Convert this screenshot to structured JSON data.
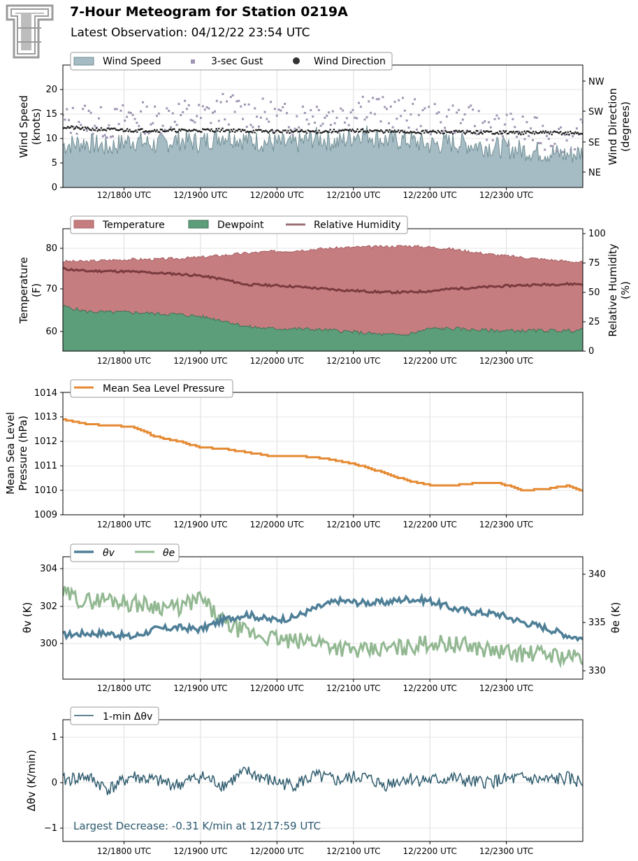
{
  "header": {
    "title": "7-Hour Meteogram for Station 0219A",
    "subtitle": "Latest Observation: 04/12/22 23:54 UTC",
    "logo": "texas-tech-double-t-logo"
  },
  "colors": {
    "wind": "#a6bcc4",
    "wind_edge": "#6f8d93",
    "gust": "#9f94b2",
    "direction": "#222222",
    "temperature": "#c57d7f",
    "dewpoint": "#5d9e7a",
    "rh": "#7a3b3f",
    "pressure": "#e58a33",
    "theta_v": "#4e7f97",
    "theta_e": "#92b892",
    "dtheta": "#2f5c6e",
    "grid": "#dddddd"
  },
  "x_tick_labels": [
    "12/1800 UTC",
    "12/1900 UTC",
    "12/2000 UTC",
    "12/2100 UTC",
    "12/2200 UTC",
    "12/2300 UTC"
  ],
  "panels": {
    "wind": {
      "ylabel_line1": "Wind Speed",
      "ylabel_line2": "(knots)",
      "y2label_line1": "Wind Direction",
      "y2label_line2": "(degrees)",
      "yticks": [
        "0",
        "5",
        "10",
        "15",
        "20"
      ],
      "y2ticks": [
        "NE",
        "SE",
        "SW",
        "NW"
      ],
      "legend": [
        "Wind Speed",
        "3-sec Gust",
        "Wind Direction"
      ]
    },
    "temp": {
      "ylabel_line1": "Temperature",
      "ylabel_line2": "(F)",
      "y2label_line1": "Relative Humidity",
      "y2label_line2": "(%)",
      "yticks": [
        "60",
        "70",
        "80"
      ],
      "y2ticks": [
        "0",
        "25",
        "50",
        "75",
        "100"
      ],
      "legend": [
        "Temperature",
        "Dewpoint",
        "Relative Humidity"
      ]
    },
    "pressure": {
      "ylabel_line1": "Mean Sea Level",
      "ylabel_line2": "Pressure (hPa)",
      "yticks": [
        "1009",
        "1010",
        "1011",
        "1012",
        "1013",
        "1014"
      ],
      "legend": [
        "Mean Sea Level Pressure"
      ]
    },
    "theta": {
      "ylabel": "θv (K)",
      "y2label": "θe (K)",
      "yticks": [
        "300",
        "302",
        "304"
      ],
      "y2ticks": [
        "330",
        "335",
        "340"
      ],
      "legend": [
        "θv",
        "θe"
      ]
    },
    "dtheta": {
      "ylabel": "Δθv (K/min)",
      "yticks": [
        "−1",
        "0",
        "1"
      ],
      "legend": [
        "1-min Δθv"
      ],
      "annotation": "Largest Decrease: -0.31 K/min at 12/17:59 UTC"
    }
  },
  "chart_data": [
    {
      "type": "area",
      "name": "wind",
      "x_hours": [
        17.2,
        24.0
      ],
      "ylim": [
        0,
        24.5
      ],
      "y2lim": [
        0,
        360
      ],
      "series": [
        {
          "name": "Wind Speed",
          "kind": "area",
          "x": [
            17.2,
            17.5,
            17.8,
            18.1,
            18.4,
            18.7,
            19.0,
            19.3,
            19.6,
            19.9,
            20.2,
            20.5,
            20.8,
            21.1,
            21.4,
            21.7,
            22.0,
            22.3,
            22.6,
            22.9,
            23.2,
            23.5,
            23.8,
            24.0
          ],
          "values": [
            8.5,
            9.0,
            8.0,
            9.5,
            8.5,
            9.5,
            9.0,
            10.5,
            9.5,
            9.0,
            8.5,
            10.0,
            9.0,
            11.0,
            9.5,
            9.5,
            8.5,
            9.0,
            8.5,
            8.0,
            7.5,
            7.0,
            6.5,
            7.0
          ]
        },
        {
          "name": "3-sec Gust",
          "kind": "scatter",
          "x": [
            17.2,
            17.5,
            17.8,
            18.1,
            18.4,
            18.7,
            19.0,
            19.3,
            19.6,
            19.9,
            20.2,
            20.5,
            20.8,
            21.1,
            21.4,
            21.7,
            22.0,
            22.3,
            22.6,
            22.9,
            23.2,
            23.5,
            23.8,
            24.0
          ],
          "values": [
            13.0,
            14.0,
            12.5,
            14.5,
            13.5,
            15.0,
            14.0,
            16.0,
            15.0,
            14.5,
            13.5,
            15.5,
            14.0,
            17.0,
            15.0,
            15.0,
            13.5,
            14.0,
            13.0,
            12.0,
            11.5,
            10.5,
            10.0,
            10.5
          ]
        },
        {
          "name": "Wind Direction",
          "kind": "scatter",
          "axis": "y2",
          "x": [
            17.2,
            17.5,
            17.8,
            18.1,
            18.4,
            18.7,
            19.0,
            19.3,
            19.6,
            19.9,
            20.2,
            20.5,
            20.8,
            21.1,
            21.4,
            21.7,
            22.0,
            22.3,
            22.6,
            22.9,
            23.2,
            23.5,
            23.8,
            24.0
          ],
          "values": [
            178,
            172,
            170,
            168,
            168,
            167,
            168,
            169,
            166,
            165,
            165,
            164,
            166,
            167,
            165,
            163,
            163,
            163,
            162,
            162,
            161,
            161,
            160,
            159
          ]
        }
      ]
    },
    {
      "type": "area",
      "name": "temperature",
      "x_hours": [
        17.2,
        24.0
      ],
      "ylim": [
        55,
        85
      ],
      "y2lim": [
        0,
        104
      ],
      "series": [
        {
          "name": "Temperature",
          "kind": "area",
          "x": [
            17.2,
            17.5,
            17.8,
            18.1,
            18.4,
            18.7,
            19.0,
            19.3,
            19.6,
            19.9,
            20.2,
            20.5,
            20.8,
            21.1,
            21.4,
            21.7,
            22.0,
            22.3,
            22.6,
            22.9,
            23.2,
            23.5,
            23.8,
            24.0
          ],
          "values": [
            77.0,
            77.0,
            77.3,
            77.5,
            77.5,
            77.7,
            78.0,
            78.5,
            79.0,
            79.4,
            79.6,
            80.0,
            80.3,
            80.5,
            80.6,
            80.8,
            80.5,
            80.0,
            79.2,
            78.5,
            78.0,
            77.5,
            77.0,
            76.8
          ]
        },
        {
          "name": "Dewpoint",
          "kind": "area",
          "x": [
            17.2,
            17.5,
            17.8,
            18.1,
            18.4,
            18.7,
            19.0,
            19.3,
            19.6,
            19.9,
            20.2,
            20.5,
            20.8,
            21.1,
            21.4,
            21.7,
            22.0,
            22.3,
            22.6,
            22.9,
            23.2,
            23.5,
            23.8,
            24.0
          ],
          "values": [
            66.0,
            64.7,
            64.5,
            64.5,
            64.2,
            64.0,
            63.5,
            62.5,
            61.0,
            60.5,
            60.5,
            60.3,
            60.0,
            59.5,
            59.0,
            59.0,
            60.5,
            60.5,
            60.2,
            60.0,
            60.0,
            60.0,
            60.0,
            60.2
          ]
        },
        {
          "name": "Relative Humidity",
          "kind": "line",
          "axis": "y2",
          "x": [
            17.2,
            17.5,
            17.8,
            18.1,
            18.4,
            18.7,
            19.0,
            19.3,
            19.6,
            19.9,
            20.2,
            20.5,
            20.8,
            21.1,
            21.4,
            21.7,
            22.0,
            22.3,
            22.6,
            22.9,
            23.2,
            23.5,
            23.8,
            24.0
          ],
          "values": [
            70,
            68,
            68,
            67.5,
            66.5,
            65.5,
            64,
            61,
            56.5,
            56,
            55,
            53.5,
            52,
            51,
            50,
            50,
            51,
            53,
            54,
            55,
            56,
            56.5,
            57,
            57
          ]
        }
      ]
    },
    {
      "type": "line",
      "name": "pressure",
      "x_hours": [
        17.2,
        24.0
      ],
      "ylim": [
        1009,
        1014
      ],
      "series": [
        {
          "name": "Mean Sea Level Pressure",
          "x": [
            17.2,
            17.5,
            17.8,
            18.1,
            18.4,
            18.7,
            19.0,
            19.3,
            19.6,
            19.9,
            20.2,
            20.5,
            20.8,
            21.1,
            21.4,
            21.7,
            22.0,
            22.3,
            22.6,
            22.9,
            23.2,
            23.5,
            23.8,
            24.0
          ],
          "values": [
            1012.9,
            1012.7,
            1012.65,
            1012.6,
            1012.2,
            1012.0,
            1011.75,
            1011.7,
            1011.55,
            1011.4,
            1011.4,
            1011.35,
            1011.2,
            1011.0,
            1010.7,
            1010.4,
            1010.2,
            1010.2,
            1010.3,
            1010.3,
            1010.0,
            1010.05,
            1010.2,
            1009.95
          ]
        }
      ]
    },
    {
      "type": "line",
      "name": "theta",
      "x_hours": [
        17.2,
        24.0
      ],
      "ylim": [
        298.2,
        304.6
      ],
      "y2lim": [
        329.2,
        341.8
      ],
      "series": [
        {
          "name": "θv",
          "x": [
            17.2,
            17.5,
            17.8,
            18.1,
            18.4,
            18.7,
            19.0,
            19.3,
            19.6,
            19.9,
            20.2,
            20.5,
            20.8,
            21.1,
            21.4,
            21.7,
            22.0,
            22.3,
            22.6,
            22.9,
            23.2,
            23.5,
            23.8,
            24.0
          ],
          "values": [
            300.5,
            300.6,
            300.6,
            300.4,
            300.8,
            300.9,
            300.8,
            301.3,
            301.6,
            301.3,
            301.4,
            301.9,
            302.3,
            302.2,
            302.2,
            302.4,
            302.3,
            301.9,
            301.7,
            301.6,
            301.2,
            300.9,
            300.5,
            300.3
          ]
        },
        {
          "name": "θe",
          "axis": "y2",
          "x": [
            17.2,
            17.5,
            17.8,
            18.1,
            18.4,
            18.7,
            19.0,
            19.3,
            19.6,
            19.9,
            20.2,
            20.5,
            20.8,
            21.1,
            21.4,
            21.7,
            22.0,
            22.3,
            22.6,
            22.9,
            23.2,
            23.5,
            23.8,
            24.0
          ],
          "values": [
            338.0,
            337.2,
            337.5,
            337.0,
            336.8,
            336.5,
            337.5,
            335.0,
            334.0,
            333.5,
            333.0,
            333.2,
            332.5,
            332.0,
            332.3,
            332.5,
            333.0,
            332.8,
            332.5,
            332.0,
            331.8,
            331.8,
            331.5,
            331.4
          ]
        }
      ]
    },
    {
      "type": "line",
      "name": "dtheta",
      "x_hours": [
        17.2,
        24.0
      ],
      "ylim": [
        -1.4,
        1.4
      ],
      "series": [
        {
          "name": "1-min Δθv",
          "x": [
            17.2,
            17.5,
            17.8,
            18.1,
            18.4,
            18.7,
            19.0,
            19.3,
            19.6,
            19.9,
            20.2,
            20.5,
            20.8,
            21.1,
            21.4,
            21.7,
            22.0,
            22.3,
            22.6,
            22.9,
            23.2,
            23.5,
            23.8,
            24.0
          ],
          "values": [
            0.0,
            0.1,
            -0.2,
            0.1,
            0.0,
            -0.1,
            0.1,
            -0.1,
            0.2,
            0.0,
            -0.1,
            0.1,
            0.0,
            0.1,
            -0.1,
            0.05,
            0.0,
            0.05,
            -0.05,
            0.0,
            0.05,
            0.0,
            0.05,
            -0.05
          ]
        }
      ]
    }
  ]
}
